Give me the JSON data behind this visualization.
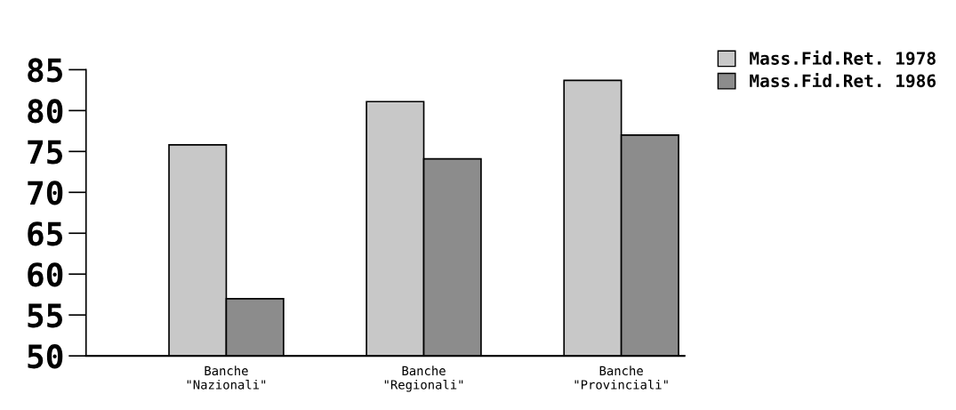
{
  "chart_data": {
    "type": "bar",
    "categories": [
      "Banche\n\"Nazionali\"",
      "Banche\n\"Regionali\"",
      "Banche\n\"Provinciali\""
    ],
    "series": [
      {
        "name": "Mass.Fid.Ret. 1978",
        "color": "#c8c8c8",
        "values": [
          75.8,
          81.1,
          83.7
        ]
      },
      {
        "name": "Mass.Fid.Ret. 1986",
        "color": "#8c8c8c",
        "values": [
          57.0,
          74.1,
          77.0
        ]
      }
    ],
    "ylim": [
      50,
      85
    ],
    "yticks": [
      50,
      55,
      60,
      65,
      70,
      75,
      80,
      85
    ],
    "grid": false,
    "legend": "top right"
  }
}
